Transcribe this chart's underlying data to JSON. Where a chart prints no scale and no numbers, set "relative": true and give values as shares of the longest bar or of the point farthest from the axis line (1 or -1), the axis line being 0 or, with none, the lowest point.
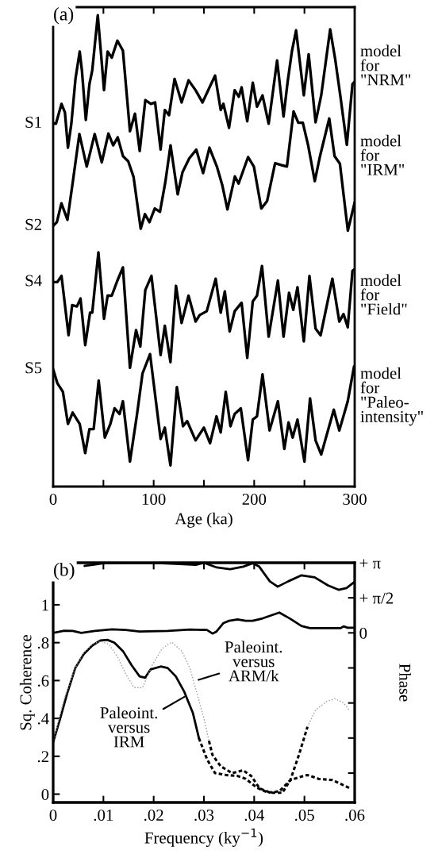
{
  "chart_data": [
    {
      "type": "line",
      "relative": true,
      "xlabel": "Age (ka)",
      "xlim": [
        0,
        300
      ],
      "xticks": [
        0,
        {
          "value": 50,
          "label": null
        },
        100,
        {
          "value": 150,
          "label": null
        },
        200,
        {
          "value": 250,
          "label": null
        },
        300
      ],
      "tick_labels": "x",
      "series": [
        {
          "name": "S1",
          "color": "#000000",
          "x": [
            0,
            2.8,
            8.3,
            11.7,
            14.7,
            18.1,
            22.2,
            26.4,
            28.6,
            32.5,
            36.1,
            38.9,
            44.4,
            47.8,
            50.6,
            54.2,
            58.3,
            63.9,
            69.4,
            76.4,
            81.4,
            86.1,
            91.7,
            97.2,
            101.4,
            106.9,
            111.1,
            115.3,
            120.8,
            127.8,
            134.7,
            141.7,
            148.6,
            155.6,
            161.1,
            166.7,
            169.4,
            175,
            180.6,
            184.7,
            187.5,
            193.1,
            198.6,
            202.8,
            208.3,
            214.4,
            222.8,
            229.2,
            233.3,
            237.5,
            241.7,
            249.4,
            254.2,
            261.1,
            266.7,
            275.6,
            280.6,
            286.1,
            292.2,
            297.8,
            300
          ],
          "values": [
            0.77,
            0.77,
            0.812,
            0.794,
            0.719,
            0.77,
            0.865,
            0.923,
            0.883,
            0.778,
            0.854,
            0.883,
            1.0,
            0.914,
            0.841,
            0.923,
            0.91,
            0.946,
            0.925,
            0.754,
            0.791,
            0.712,
            0.82,
            0.812,
            0.815,
            0.715,
            0.799,
            0.788,
            0.865,
            0.815,
            0.862,
            0.841,
            0.815,
            0.847,
            0.872,
            0.799,
            0.812,
            0.761,
            0.841,
            0.827,
            0.847,
            0.775,
            0.857,
            0.806,
            0.83,
            0.77,
            0.904,
            0.785,
            0.859,
            0.923,
            0.968,
            0.83,
            0.917,
            0.773,
            0.83,
            0.97,
            0.907,
            0.823,
            0.725,
            0.854,
            0.859
          ]
        },
        {
          "name": "S2",
          "color": "#000000",
          "x": [
            0,
            3.7,
            8.2,
            14.2,
            19.5,
            26.1,
            33.4,
            41.3,
            48.4,
            55.0,
            59.7,
            64.2,
            69.5,
            74.7,
            80.0,
            87.1,
            91.3,
            95.8,
            101.1,
            106.3,
            111.6,
            116.8,
            123.9,
            128.7,
            135.3,
            142.4,
            149.2,
            155.5,
            162.9,
            168.2,
            173.4,
            180.8,
            184.5,
            193.9,
            199.7,
            207.1,
            212.9,
            220.8,
            227.4,
            232.6,
            239.2,
            243.9,
            248.4,
            253.7,
            260.3,
            265.5,
            274.7,
            280.0,
            285.3,
            293.2,
            300
          ],
          "values": [
            0.553,
            0.561,
            0.601,
            0.566,
            0.646,
            0.748,
            0.679,
            0.748,
            0.688,
            0.749,
            0.724,
            0.741,
            0.701,
            0.69,
            0.657,
            0.547,
            0.578,
            0.561,
            0.59,
            0.583,
            0.646,
            0.724,
            0.62,
            0.667,
            0.696,
            0.715,
            0.665,
            0.719,
            0.679,
            0.64,
            0.588,
            0.658,
            0.643,
            0.699,
            0.679,
            0.59,
            0.606,
            0.686,
            0.682,
            0.679,
            0.796,
            0.772,
            0.772,
            0.724,
            0.648,
            0.701,
            0.781,
            0.701,
            0.685,
            0.543,
            0.603
          ]
        },
        {
          "name": "S4",
          "color": "#000000",
          "x": [
            0,
            4.2,
            8.3,
            15.3,
            18.9,
            23.6,
            27.2,
            31.9,
            36.7,
            38.9,
            45.0,
            50.6,
            54.2,
            58.3,
            63.9,
            69.4,
            76.4,
            82.5,
            86.7,
            91.7,
            97.8,
            106.9,
            111.1,
            116.7,
            122.2,
            127.8,
            134.7,
            141.7,
            145.8,
            152.8,
            161.7,
            166.7,
            170.8,
            175.6,
            180.6,
            187.5,
            193.1,
            198.6,
            202.8,
            207.8,
            214.4,
            223.6,
            229.2,
            234.7,
            238.9,
            243.1,
            249.4,
            255,
            261.1,
            266.1,
            277.8,
            284.7,
            288.9,
            293.1,
            297.8,
            300
          ],
          "values": [
            0.434,
            0.434,
            0.447,
            0.321,
            0.385,
            0.382,
            0.399,
            0.3,
            0.369,
            0.369,
            0.497,
            0.356,
            0.405,
            0.405,
            0.437,
            0.465,
            0.252,
            0.332,
            0.297,
            0.417,
            0.447,
            0.279,
            0.341,
            0.264,
            0.426,
            0.347,
            0.405,
            0.35,
            0.364,
            0.372,
            0.441,
            0.369,
            0.414,
            0.329,
            0.372,
            0.39,
            0.273,
            0.393,
            0.405,
            0.468,
            0.318,
            0.437,
            0.318,
            0.411,
            0.375,
            0.423,
            0.308,
            0.447,
            0.335,
            0.321,
            0.441,
            0.35,
            0.366,
            0.338,
            0.458,
            0.461
          ]
        },
        {
          "name": "S5",
          "color": "#000000",
          "x": [
            0,
            4.2,
            9.7,
            14.7,
            19.4,
            26.4,
            31.9,
            36.1,
            40.3,
            45.3,
            51.4,
            56.9,
            61.1,
            66.1,
            69.4,
            76.4,
            83.3,
            88.9,
            96.4,
            106.9,
            111.1,
            116.7,
            123.1,
            129.2,
            133.3,
            141.7,
            150,
            156.1,
            162.5,
            166.7,
            171.7,
            176.4,
            180.6,
            186.7,
            193.9,
            198.6,
            202.8,
            208.3,
            215.3,
            223.6,
            230,
            234.2,
            238.3,
            243.1,
            250,
            255.6,
            261.1,
            266.7,
            279.2,
            284.7,
            293.1,
            299.4
          ],
          "values": [
            0.249,
            0.219,
            0.201,
            0.133,
            0.157,
            0.133,
            0.071,
            0.122,
            0.122,
            0.225,
            0.104,
            0.133,
            0.166,
            0.154,
            0.181,
            0.053,
            0.151,
            0.24,
            0.281,
            0.101,
            0.125,
            0.045,
            0.211,
            0.128,
            0.139,
            0.098,
            0.125,
            0.092,
            0.149,
            0.115,
            0.201,
            0.128,
            0.154,
            0.166,
            0.056,
            0.142,
            0.149,
            0.238,
            0.119,
            0.181,
            0.08,
            0.136,
            0.104,
            0.142,
            0.053,
            0.187,
            0.098,
            0.068,
            0.163,
            0.119,
            0.181,
            0.255
          ]
        }
      ],
      "annotations": [
        "(a)",
        "model\nfor\n\"NRM\"",
        "model\nfor\n\"IRM\"",
        "model\nfor\n\"Field\"",
        "model\nfor\n\"Paleo-\nintensity\""
      ]
    },
    {
      "type": "line",
      "xlabel": "Frequency (ky$^{−1}$)",
      "ylabel": "Sq. Coherence",
      "y2label": "Phase",
      "xlim": [
        0,
        0.06
      ],
      "xticks": [
        0,
        {
          "value": 0.01,
          "label": ".01"
        },
        {
          "value": 0.02,
          "label": ".02"
        },
        {
          "value": 0.03,
          "label": ".03"
        },
        {
          "value": 0.04,
          "label": ".04"
        },
        {
          "value": 0.05,
          "label": ".05"
        },
        {
          "value": 0.06,
          "label": ".06"
        }
      ],
      "ylim": [
        -0.044,
        1.222
      ],
      "yticks": [
        0,
        {
          "value": 0.2,
          "label": ".2"
        },
        {
          "value": 0.4,
          "label": ".4"
        },
        {
          "value": 0.6,
          "label": ".6"
        },
        {
          "value": 0.8,
          "label": ".8"
        },
        1
      ],
      "y2lim": [
        -7.6,
        3.1416
      ],
      "y2ticks": [
        {
          "value": 3.1416,
          "label": "+ π"
        },
        {
          "value": 1.5708,
          "label": "+ π/2"
        },
        0,
        {
          "value": -1.5708,
          "label": null
        },
        {
          "value": -3.1416,
          "label": null
        },
        {
          "value": -4.7124,
          "label": null
        },
        {
          "value": -6.2832,
          "label": null
        }
      ],
      "series": [
        {
          "color": "#000000",
          "line_style": "solid",
          "axis": "y2",
          "x": [
            0,
            0.0022,
            0.0039,
            0.0056,
            0.0083,
            0.0117,
            0.0144,
            0.0172,
            0.0228,
            0.0272,
            0.0306,
            0.0317,
            0.0325,
            0.0339,
            0.035,
            0.0367,
            0.0383,
            0.0397,
            0.0417,
            0.045,
            0.0472,
            0.0494,
            0.0511,
            0.0572,
            0.0578,
            0.0586,
            0.06
          ],
          "values": [
            0,
            0.1,
            0.09,
            0,
            0.09,
            0.16,
            0.13,
            0.06,
            0.09,
            0.15,
            0.13,
            -0.03,
            0.06,
            0.44,
            0.54,
            0.6,
            0.54,
            0.54,
            0.65,
            0.91,
            0.63,
            0.31,
            0.21,
            0.21,
            0.29,
            0.23,
            0.23
          ]
        },
        {
          "color": "#000000",
          "line_style": "solid",
          "axis": "y2",
          "x": [
            0.00626,
            0.00784,
            0.00995,
            0.01468,
            0.01995,
            0.02521,
            0.02837,
            0.02995,
            0.03258,
            0.03521,
            0.03784,
            0.03968,
            0.041,
            0.04311,
            0.04468,
            0.04679,
            0.04942,
            0.05205,
            0.05468,
            0.05679,
            0.05837,
            0.06
          ],
          "values": [
            3.0,
            3.05,
            3.12,
            3.14,
            3.14,
            3.08,
            3.05,
            3.14,
            2.93,
            2.85,
            2.97,
            3.12,
            2.97,
            2.31,
            2.07,
            2.31,
            2.58,
            2.49,
            2.13,
            1.93,
            2.01,
            2.29
          ]
        },
        {
          "color": "#000000",
          "line_style": "solid",
          "x": [
            0,
            0.0014,
            0.0028,
            0.0044,
            0.0061,
            0.0078,
            0.0094,
            0.0108,
            0.0122,
            0.0139,
            0.0156,
            0.0172,
            0.0183,
            0.0194,
            0.0214,
            0.0228,
            0.0244,
            0.0261,
            0.0278,
            0.029
          ],
          "values": [
            0.274,
            0.4,
            0.533,
            0.666,
            0.74,
            0.785,
            0.812,
            0.815,
            0.8,
            0.755,
            0.681,
            0.622,
            0.615,
            0.659,
            0.674,
            0.666,
            0.622,
            0.54,
            0.429,
            0.296
          ]
        },
        {
          "color": "#000000",
          "line_style": "dashed",
          "x": [
            0.029,
            0.0306,
            0.0322,
            0.0344,
            0.0367,
            0.0383,
            0.0406,
            0.0428,
            0.045,
            0.0472,
            0.0489,
            0.0506,
            0.0528,
            0.0556,
            0.0589
          ],
          "values": [
            0.296,
            0.185,
            0.111,
            0.101,
            0.096,
            0.081,
            0.033,
            0.008,
            0.015,
            0.074,
            0.089,
            0.101,
            0.081,
            0.074,
            0.033
          ]
        },
        {
          "color": "#999999",
          "line_style": "dotted",
          "x": [
            0,
            0.0022,
            0.0044,
            0.0061,
            0.0078,
            0.0094,
            0.0111,
            0.0128,
            0.0144,
            0.0161,
            0.0178,
            0.0197,
            0.0217,
            0.0236,
            0.0256,
            0.0272,
            0.0286,
            0.03,
            0.031
          ],
          "values": [
            0.274,
            0.504,
            0.666,
            0.748,
            0.792,
            0.807,
            0.792,
            0.726,
            0.637,
            0.563,
            0.563,
            0.681,
            0.77,
            0.803,
            0.755,
            0.666,
            0.533,
            0.4,
            0.281
          ]
        },
        {
          "color": "#000000",
          "line_style": "dashed",
          "x": [
            0.031,
            0.0317,
            0.0333,
            0.0356,
            0.0378,
            0.0394,
            0.0411,
            0.0433,
            0.0456,
            0.0472,
            0.0489,
            0.0506
          ],
          "values": [
            0.281,
            0.207,
            0.148,
            0.111,
            0.126,
            0.096,
            0.03,
            0.007,
            0.007,
            0.074,
            0.207,
            0.355
          ]
        },
        {
          "color": "#999999",
          "line_style": "dotted",
          "x": [
            0.0506,
            0.0522,
            0.0544,
            0.0561,
            0.0578,
            0.0589
          ],
          "values": [
            0.355,
            0.444,
            0.489,
            0.504,
            0.481,
            0.444
          ]
        }
      ],
      "annotations": [
        "(b)",
        {
          "text": "Paleoint.\nversus\nIRM",
          "x": 0.0265,
          "y": 0.52
        },
        {
          "text": "Paleoint.\nversus\nARM/k",
          "x": 0.0285,
          "y": 0.6
        }
      ]
    }
  ]
}
